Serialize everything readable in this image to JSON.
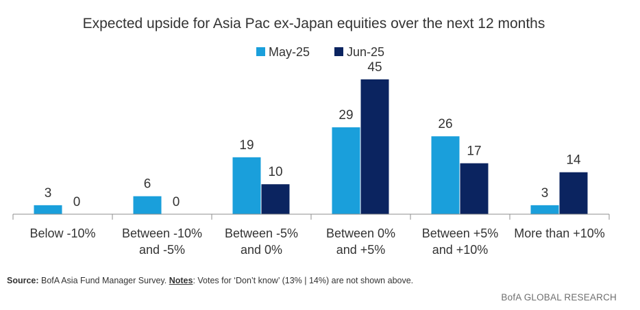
{
  "chart_data": {
    "type": "bar",
    "title": "Expected upside for Asia Pac ex-Japan equities over the next 12 months",
    "categories": [
      [
        "Below -10%"
      ],
      [
        "Between -10%",
        "and -5%"
      ],
      [
        "Between -5%",
        "and 0%"
      ],
      [
        "Between 0%",
        "and +5%"
      ],
      [
        "Between +5%",
        "and +10%"
      ],
      [
        "More than +10%"
      ]
    ],
    "series": [
      {
        "name": "May-25",
        "color": "#1a9fdb",
        "values": [
          3,
          6,
          19,
          29,
          26,
          3
        ]
      },
      {
        "name": "Jun-25",
        "color": "#0b2460",
        "values": [
          0,
          0,
          10,
          45,
          17,
          14
        ]
      }
    ],
    "xlabel": "",
    "ylabel": "",
    "ylim": [
      0,
      45
    ],
    "grid": false,
    "legend": "top-center"
  },
  "footer": {
    "source_label": "Source:",
    "source_text": " BofA Asia Fund Manager Survey. ",
    "notes_label": "Notes",
    "notes_text": ": Votes for ‘Don’t know’ (13% | 14%) are not shown above.",
    "brand": "BofA GLOBAL RESEARCH"
  }
}
